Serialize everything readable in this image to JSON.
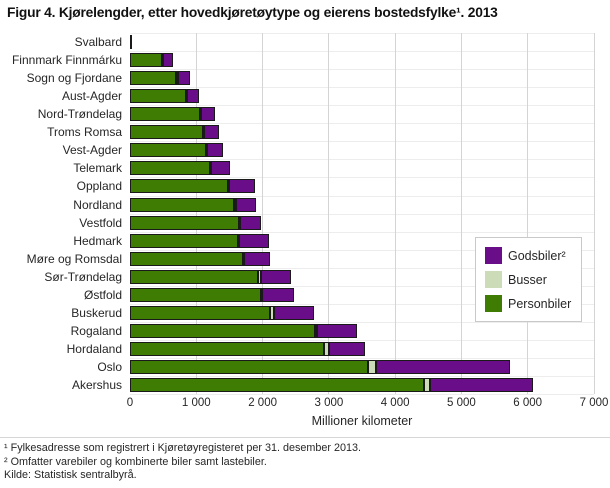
{
  "title": "Figur 4. Kjørelengder, etter hovedkjøretøytype og eierens bostedsfylke¹. 2013",
  "chart_data": {
    "type": "bar",
    "orientation": "horizontal",
    "stacked": true,
    "title": "Figur 4. Kjørelengder, etter hovedkjøretøytype og eierens bostedsfylke¹. 2013",
    "xlabel": "Millioner kilometer",
    "xlim": [
      0,
      7000
    ],
    "xticks": [
      0,
      1000,
      2000,
      3000,
      4000,
      5000,
      6000,
      7000
    ],
    "xtick_labels": [
      "0",
      "1 000",
      "2 000",
      "3 000",
      "4 000",
      "5 000",
      "6 000",
      "7 000"
    ],
    "grid": true,
    "legend_position": "middle-right",
    "categories": [
      "Svalbard",
      "Finnmark Finnmárku",
      "Sogn og Fjordane",
      "Aust-Agder",
      "Nord-Trøndelag",
      "Troms Romsa",
      "Vest-Agder",
      "Telemark",
      "Oppland",
      "Nordland",
      "Vestfold",
      "Hedmark",
      "Møre og Romsdal",
      "Sør-Trøndelag",
      "Østfold",
      "Buskerud",
      "Rogaland",
      "Hordaland",
      "Oslo",
      "Akershus"
    ],
    "series": [
      {
        "name": "Personbiler",
        "color": "#3e7c04",
        "values": [
          15,
          490,
          700,
          850,
          1060,
          1095,
          1150,
          1200,
          1475,
          1575,
          1640,
          1625,
          1700,
          1930,
          1970,
          2115,
          2795,
          2920,
          3585,
          4440
        ]
      },
      {
        "name": "Busser",
        "color": "#ccdcb8",
        "values": [
          0,
          15,
          20,
          15,
          15,
          20,
          15,
          15,
          15,
          25,
          15,
          20,
          25,
          50,
          15,
          55,
          20,
          75,
          130,
          85
        ]
      },
      {
        "name": "Godsbiler²",
        "color": "#6a0d88",
        "values": [
          5,
          150,
          190,
          175,
          200,
          235,
          235,
          300,
          390,
          295,
          325,
          450,
          390,
          455,
          490,
          600,
          610,
          550,
          2020,
          1560
        ]
      }
    ]
  },
  "legend": {
    "items": [
      {
        "label": "Godsbiler²",
        "color": "#6a0d88"
      },
      {
        "label": "Busser",
        "color": "#ccdcb8"
      },
      {
        "label": "Personbiler",
        "color": "#3e7c04"
      }
    ]
  },
  "footnotes": [
    "¹ Fylkesadresse som registrert i Kjøretøyregisteret per 31. desember 2013.",
    "² Omfatter varebiler og kombinerte biler samt lastebiler.",
    "Kilde: Statistisk sentralbyrå."
  ],
  "colors": {
    "bar_border": "#1a1a1a",
    "grid_vertical": "#d4d4d4",
    "grid_horizontal": "#ededed",
    "text": "#262626"
  }
}
